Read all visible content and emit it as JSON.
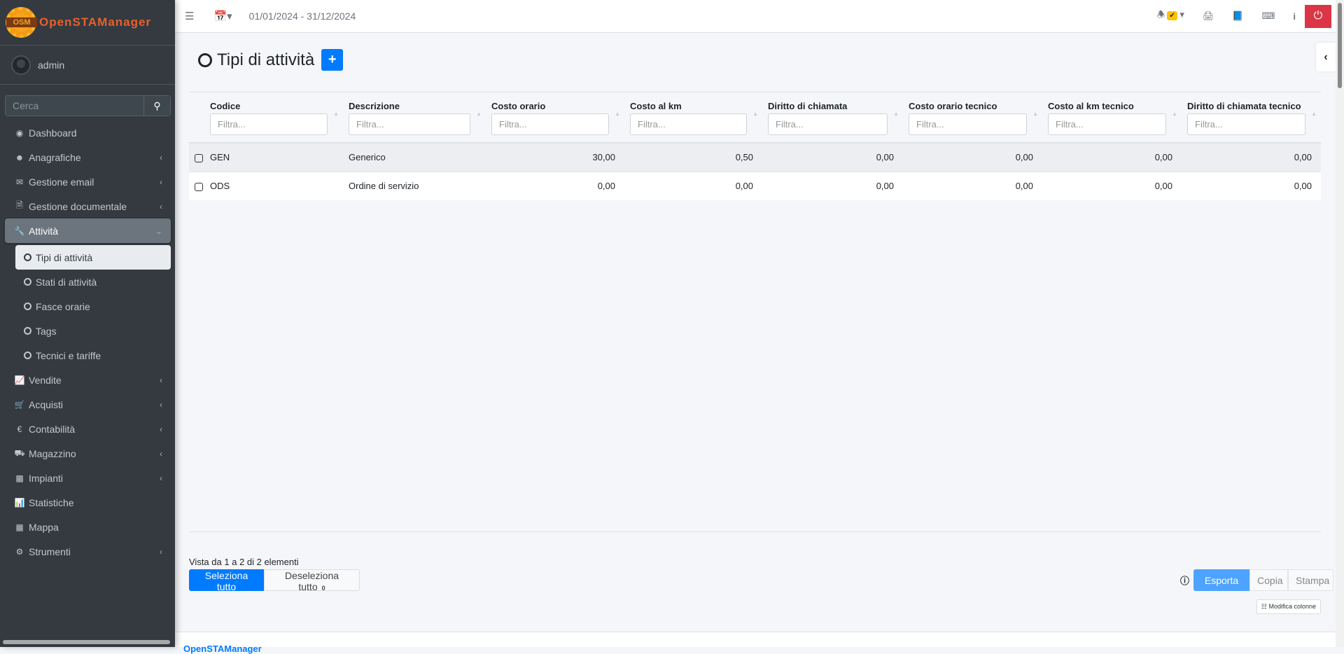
{
  "app": {
    "logo_abbr": "OSM",
    "brand": "OpenSTAManager",
    "footer_brand": "OpenSTAManager"
  },
  "user": {
    "name": "admin"
  },
  "sidebar": {
    "search_placeholder": "Cerca",
    "items": [
      {
        "label": "Dashboard",
        "icon": "dashboard-icon",
        "chevron": false
      },
      {
        "label": "Anagrafiche",
        "icon": "users-icon",
        "chevron": true
      },
      {
        "label": "Gestione email",
        "icon": "envelope-icon",
        "chevron": true
      },
      {
        "label": "Gestione documentale",
        "icon": "document-icon",
        "chevron": true
      },
      {
        "label": "Attività",
        "icon": "wrench-icon",
        "chevron": true,
        "active": true
      }
    ],
    "subitems": [
      {
        "label": "Tipi di attività",
        "current": true
      },
      {
        "label": "Stati di attività"
      },
      {
        "label": "Fasce orarie"
      },
      {
        "label": "Tags"
      },
      {
        "label": "Tecnici e tariffe"
      }
    ],
    "items2": [
      {
        "label": "Vendite",
        "icon": "chart-line-icon"
      },
      {
        "label": "Acquisti",
        "icon": "cart-icon"
      },
      {
        "label": "Contabilità",
        "icon": "euro-icon"
      },
      {
        "label": "Magazzino",
        "icon": "truck-icon"
      },
      {
        "label": "Impianti",
        "icon": "puzzle-icon"
      },
      {
        "label": "Statistiche",
        "icon": "bar-chart-icon"
      },
      {
        "label": "Mappa",
        "icon": "map-icon"
      },
      {
        "label": "Strumenti",
        "icon": "cog-icon"
      }
    ]
  },
  "header": {
    "date_range": "01/01/2024 - 31/12/2024",
    "colors": {
      "power": "#dc3545",
      "badge": "#ffc107"
    }
  },
  "page": {
    "title": "Tipi di attività",
    "add_label": "+",
    "accent": "#007bff"
  },
  "table": {
    "filter_placeholder": "Filtra...",
    "columns": [
      "Codice",
      "Descrizione",
      "Costo orario",
      "Costo al km",
      "Diritto di chiamata",
      "Costo orario tecnico",
      "Costo al km tecnico",
      "Diritto di chiamata tecnico"
    ],
    "rows": [
      [
        "GEN",
        "Generico",
        "30,00",
        "0,50",
        "0,00",
        "0,00",
        "0,00",
        "0,00"
      ],
      [
        "ODS",
        "Ordine di servizio",
        "0,00",
        "0,00",
        "0,00",
        "0,00",
        "0,00",
        "0,00"
      ]
    ]
  },
  "footer_controls": {
    "info": "Vista da 1 a 2 di 2 elementi",
    "select_all": "Seleziona tutto",
    "deselect_all": "Deseleziona tutto",
    "selected_count": "0",
    "export": "Esporta",
    "copy": "Copia",
    "print": "Stampa",
    "edit_columns": "Modifica colonne"
  }
}
